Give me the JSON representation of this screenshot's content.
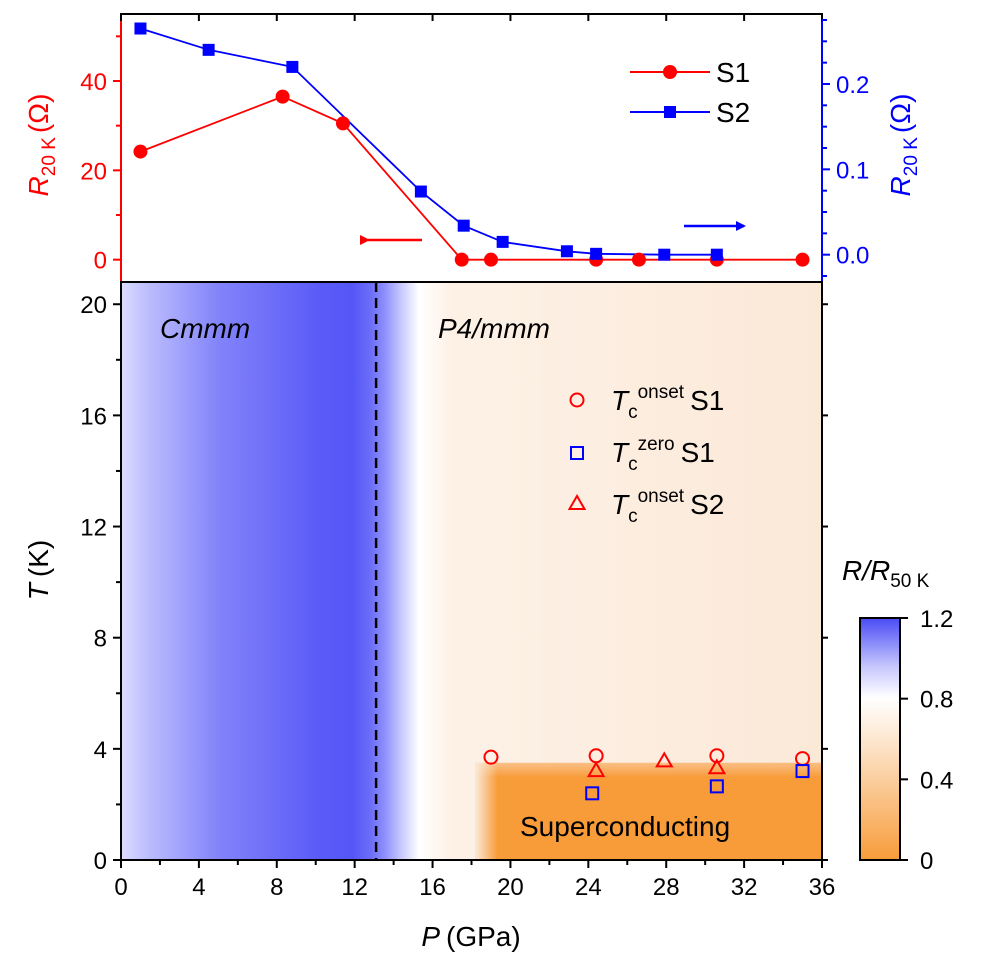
{
  "chart_data": [
    {
      "type": "line",
      "panel": "top",
      "x_axis": {
        "label": "P",
        "unit": "(GPa)",
        "range": [
          0,
          36
        ],
        "ticks": [
          0,
          4,
          8,
          12,
          16,
          20,
          24,
          28,
          32,
          36
        ]
      },
      "left_axis": {
        "label": "R",
        "label_sub": "20 K",
        "unit": "(Ω)",
        "color": "#ff0000",
        "range": [
          -5,
          55
        ],
        "ticks": [
          0,
          20,
          40
        ]
      },
      "right_axis": {
        "label": "R",
        "label_sub": "20 K",
        "unit": "(Ω)",
        "color": "#0000ff",
        "range": [
          -0.032,
          0.282
        ],
        "ticks": [
          "0.0",
          "0.1",
          "0.2"
        ]
      },
      "series": [
        {
          "name": "S1",
          "axis": "left",
          "color": "#ff0000",
          "marker": "circle",
          "x": [
            1.0,
            8.3,
            11.4,
            17.5,
            19.0,
            24.4,
            26.6,
            30.6,
            35.0
          ],
          "y": [
            24.2,
            36.5,
            30.5,
            0.0,
            0.0,
            0.0,
            0.0,
            0.0,
            0.0
          ]
        },
        {
          "name": "S2",
          "axis": "right",
          "color": "#0000ff",
          "marker": "square",
          "x": [
            1.0,
            4.5,
            8.8,
            15.4,
            17.6,
            19.6,
            22.9,
            24.4,
            27.9,
            30.6
          ],
          "y": [
            0.265,
            0.24,
            0.22,
            0.074,
            0.034,
            0.015,
            0.004,
            0.001,
            0.0,
            0.0
          ]
        }
      ],
      "annotations": {
        "left_arrow": "points to left axis (S1)",
        "right_arrow": "points to right axis (S2)"
      },
      "legend": {
        "position": "top-right",
        "entries": [
          "S1",
          "S2"
        ]
      }
    },
    {
      "type": "heatmap",
      "panel": "bottom",
      "x_axis": {
        "label": "P",
        "unit": "(GPa)",
        "range": [
          0,
          36
        ],
        "ticks": [
          0,
          4,
          8,
          12,
          16,
          20,
          24,
          28,
          32,
          36
        ]
      },
      "y_axis": {
        "label": "T",
        "unit": "(K)",
        "range": [
          0,
          20.8
        ],
        "ticks": [
          0,
          4,
          8,
          12,
          16,
          20
        ]
      },
      "colorbar": {
        "title": "R/R",
        "title_sub": "50 K",
        "range": [
          0,
          1.2
        ],
        "ticks": [
          "0",
          "0.4",
          "0.8",
          "1.2"
        ],
        "colors": [
          "#f89c3a",
          "#ffffff",
          "#4a4bf6"
        ]
      },
      "phase_boundary": {
        "P": 13.1,
        "style": "dashed"
      },
      "regions": [
        {
          "label": "Cmmm",
          "italic": true
        },
        {
          "label": "P4/mmm",
          "italic": true
        },
        {
          "label": "Superconducting"
        }
      ],
      "series": [
        {
          "name": "T_c^onset S1",
          "label_main": "T",
          "label_sub": "c",
          "label_sup": "onset",
          "label_sample": "S1",
          "marker": "circle-open",
          "color": "#ff0000",
          "x": [
            19.0,
            24.4,
            30.6,
            35.0
          ],
          "y": [
            3.7,
            3.75,
            3.75,
            3.65
          ]
        },
        {
          "name": "T_c^zero S1",
          "label_main": "T",
          "label_sub": "c",
          "label_sup": "zero",
          "label_sample": "S1",
          "marker": "square-open",
          "color": "#0000ff",
          "x": [
            24.2,
            30.6,
            35.0
          ],
          "y": [
            2.4,
            2.65,
            3.2
          ]
        },
        {
          "name": "T_c^onset S2",
          "label_main": "T",
          "label_sub": "c",
          "label_sup": "onset",
          "label_sample": "S2",
          "marker": "triangle-open",
          "color": "#ff0000",
          "x": [
            24.4,
            27.9,
            30.6
          ],
          "y": [
            3.2,
            3.55,
            3.3
          ]
        }
      ],
      "legend": {
        "position": "top-right"
      }
    }
  ]
}
